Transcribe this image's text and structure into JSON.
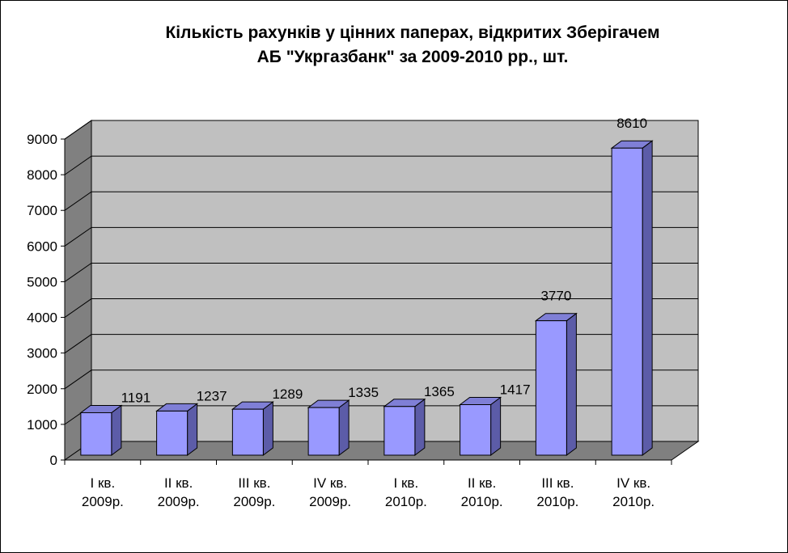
{
  "chart_data": {
    "type": "bar",
    "title_line1": "Кількість рахунків у цінних паперах, відкритих Зберігачем",
    "title_line2": "АБ \"Укргазбанк\" за 2009-2010 рр., шт.",
    "categories": [
      [
        "I кв.",
        "2009р."
      ],
      [
        "II кв.",
        "2009р."
      ],
      [
        "III кв.",
        "2009р."
      ],
      [
        "IV кв.",
        "2009р."
      ],
      [
        "I кв.",
        "2010р."
      ],
      [
        "II кв.",
        "2010р."
      ],
      [
        "III кв.",
        "2010р."
      ],
      [
        "IV кв.",
        "2010р."
      ]
    ],
    "values": [
      1191,
      1237,
      1289,
      1335,
      1365,
      1417,
      3770,
      8610
    ],
    "ylim": [
      0,
      9000
    ],
    "yticks": [
      0,
      1000,
      2000,
      3000,
      4000,
      5000,
      6000,
      7000,
      8000,
      9000
    ],
    "grid": true,
    "legend": "none",
    "colors": {
      "bar_front": "#9999ff",
      "bar_side": "#5c5ca8",
      "bar_top": "#7f7fd6",
      "wall": "#c0c0c0",
      "side_wall": "#808080",
      "floor": "#808080"
    }
  }
}
